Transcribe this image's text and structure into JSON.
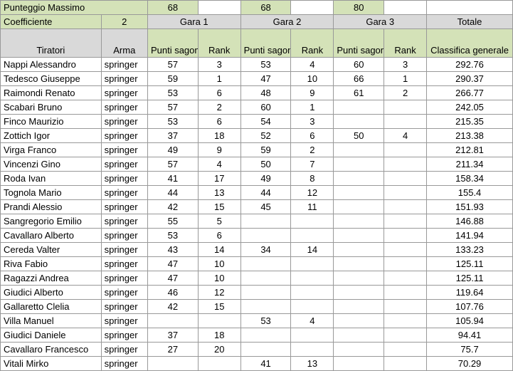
{
  "labels": {
    "punteggio_massimo": "Punteggio Massimo",
    "coefficiente": "Coefficiente",
    "tiratori": "Tiratori",
    "arma": "Arma",
    "punti_sagome": "Punti sagome",
    "rank": "Rank",
    "totale": "Totale",
    "classifica_generale": "Classifica generale",
    "gara1": "Gara 1",
    "gara2": "Gara 2",
    "gara3": "Gara 3"
  },
  "header_values": {
    "max1": "68",
    "max2": "68",
    "max3": "80",
    "coeff": "2"
  },
  "colors": {
    "green": "#d4e2b8",
    "grey": "#d9d9d9",
    "border": "#999999",
    "bg": "#ffffff"
  },
  "columns": [
    "Tiratori",
    "Arma",
    "Punti sagome",
    "Rank",
    "Punti sagome",
    "Rank",
    "Punti sagome",
    "Rank",
    "Classifica generale"
  ],
  "rows": [
    {
      "name": "Nappi Alessandro",
      "arma": "springer",
      "ps1": "57",
      "r1": "3",
      "ps2": "53",
      "r2": "4",
      "ps3": "60",
      "r3": "3",
      "tot": "292.76"
    },
    {
      "name": "Tedesco Giuseppe",
      "arma": "springer",
      "ps1": "59",
      "r1": "1",
      "ps2": "47",
      "r2": "10",
      "ps3": "66",
      "r3": "1",
      "tot": "290.37"
    },
    {
      "name": "Raimondi Renato",
      "arma": "springer",
      "ps1": "53",
      "r1": "6",
      "ps2": "48",
      "r2": "9",
      "ps3": "61",
      "r3": "2",
      "tot": "266.77"
    },
    {
      "name": "Scabari Bruno",
      "arma": "springer",
      "ps1": "57",
      "r1": "2",
      "ps2": "60",
      "r2": "1",
      "ps3": "",
      "r3": "",
      "tot": "242.05"
    },
    {
      "name": "Finco Maurizio",
      "arma": "springer",
      "ps1": "53",
      "r1": "6",
      "ps2": "54",
      "r2": "3",
      "ps3": "",
      "r3": "",
      "tot": "215.35"
    },
    {
      "name": "Zottich Igor",
      "arma": "springer",
      "ps1": "37",
      "r1": "18",
      "ps2": "52",
      "r2": "6",
      "ps3": "50",
      "r3": "4",
      "tot": "213.38"
    },
    {
      "name": "Virga Franco",
      "arma": "springer",
      "ps1": "49",
      "r1": "9",
      "ps2": "59",
      "r2": "2",
      "ps3": "",
      "r3": "",
      "tot": "212.81"
    },
    {
      "name": "Vincenzi Gino",
      "arma": "springer",
      "ps1": "57",
      "r1": "4",
      "ps2": "50",
      "r2": "7",
      "ps3": "",
      "r3": "",
      "tot": "211.34"
    },
    {
      "name": "Roda Ivan",
      "arma": "springer",
      "ps1": "41",
      "r1": "17",
      "ps2": "49",
      "r2": "8",
      "ps3": "",
      "r3": "",
      "tot": "158.34"
    },
    {
      "name": "Tognola Mario",
      "arma": "springer",
      "ps1": "44",
      "r1": "13",
      "ps2": "44",
      "r2": "12",
      "ps3": "",
      "r3": "",
      "tot": "155.4"
    },
    {
      "name": "Prandi Alessio",
      "arma": "springer",
      "ps1": "42",
      "r1": "15",
      "ps2": "45",
      "r2": "11",
      "ps3": "",
      "r3": "",
      "tot": "151.93"
    },
    {
      "name": "Sangregorio Emilio",
      "arma": "springer",
      "ps1": "55",
      "r1": "5",
      "ps2": "",
      "r2": "",
      "ps3": "",
      "r3": "",
      "tot": "146.88"
    },
    {
      "name": "Cavallaro Alberto",
      "arma": "springer",
      "ps1": "53",
      "r1": "6",
      "ps2": "",
      "r2": "",
      "ps3": "",
      "r3": "",
      "tot": "141.94"
    },
    {
      "name": "Cereda Valter",
      "arma": "springer",
      "ps1": "43",
      "r1": "14",
      "ps2": "34",
      "r2": "14",
      "ps3": "",
      "r3": "",
      "tot": "133.23"
    },
    {
      "name": "Riva Fabio",
      "arma": "springer",
      "ps1": "47",
      "r1": "10",
      "ps2": "",
      "r2": "",
      "ps3": "",
      "r3": "",
      "tot": "125.11"
    },
    {
      "name": "Ragazzi Andrea",
      "arma": "springer",
      "ps1": "47",
      "r1": "10",
      "ps2": "",
      "r2": "",
      "ps3": "",
      "r3": "",
      "tot": "125.11"
    },
    {
      "name": "Giudici Alberto",
      "arma": "springer",
      "ps1": "46",
      "r1": "12",
      "ps2": "",
      "r2": "",
      "ps3": "",
      "r3": "",
      "tot": "119.64"
    },
    {
      "name": "Gallaretto Clelia",
      "arma": "springer",
      "ps1": "42",
      "r1": "15",
      "ps2": "",
      "r2": "",
      "ps3": "",
      "r3": "",
      "tot": "107.76"
    },
    {
      "name": "Villa Manuel",
      "arma": "springer",
      "ps1": "",
      "r1": "",
      "ps2": "53",
      "r2": "4",
      "ps3": "",
      "r3": "",
      "tot": "105.94"
    },
    {
      "name": "Giudici Daniele",
      "arma": "springer",
      "ps1": "37",
      "r1": "18",
      "ps2": "",
      "r2": "",
      "ps3": "",
      "r3": "",
      "tot": "94.41"
    },
    {
      "name": "Cavallaro Francesco",
      "arma": "springer",
      "ps1": "27",
      "r1": "20",
      "ps2": "",
      "r2": "",
      "ps3": "",
      "r3": "",
      "tot": "75.7"
    },
    {
      "name": "Vitali Mirko",
      "arma": "springer",
      "ps1": "",
      "r1": "",
      "ps2": "41",
      "r2": "13",
      "ps3": "",
      "r3": "",
      "tot": "70.29"
    }
  ]
}
